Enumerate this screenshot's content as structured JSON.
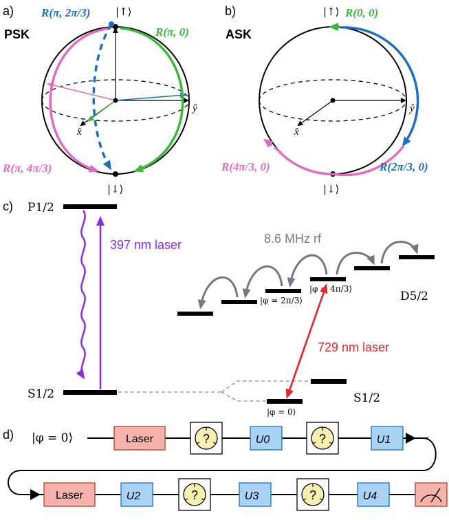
{
  "panel_a": {
    "label": "a)",
    "title": "PSK",
    "ket_up": "|↑⟩",
    "ket_down": "|↓⟩",
    "axis_x": "x̂",
    "axis_y": "ŷ",
    "rot_top": "R(π, 2π/3)",
    "rot_right": "R(π, 0)",
    "rot_left": "R(π, 4π/3)"
  },
  "panel_b": {
    "label": "b)",
    "title": "ASK",
    "ket_up": "|↑⟩",
    "ket_down": "|↓⟩",
    "axis_x": "x̂",
    "axis_y": "ŷ",
    "rot_top": "R(0, 0)",
    "rot_right": "R(2π/3, 0)",
    "rot_left": "R(4π/3, 0)"
  },
  "panel_c": {
    "label": "c)",
    "p_level": "P1/2",
    "s_level_left": "S1/2",
    "s_level_right": "S1/2",
    "d_level": "D5/2",
    "laser_397": "397 nm laser",
    "laser_729": "729 nm laser",
    "rf": "8.6 MHz rf",
    "state_0": "|φ = 0⟩",
    "state_2pi3": "|φ = 2π/3⟩",
    "state_4pi3": "|φ = 4π/3⟩"
  },
  "panel_d": {
    "label": "d)",
    "initial_state": "|φ = 0⟩",
    "laser_1": "Laser",
    "laser_2": "Laser",
    "measure_symbol": "?",
    "u0": "U0",
    "u1": "U1",
    "u2": "U2",
    "u3": "U3",
    "u4": "U4"
  },
  "colors": {
    "green": "#3cb93c",
    "blue": "#1a6fc4",
    "pink": "#e26bc1",
    "purple": "#8b2be2",
    "red": "#e8262d",
    "gray": "#6f7a86",
    "laser_box": "#f5b2ab",
    "u_box": "#a9d3f5",
    "meas_circle": "#f9efb0"
  }
}
